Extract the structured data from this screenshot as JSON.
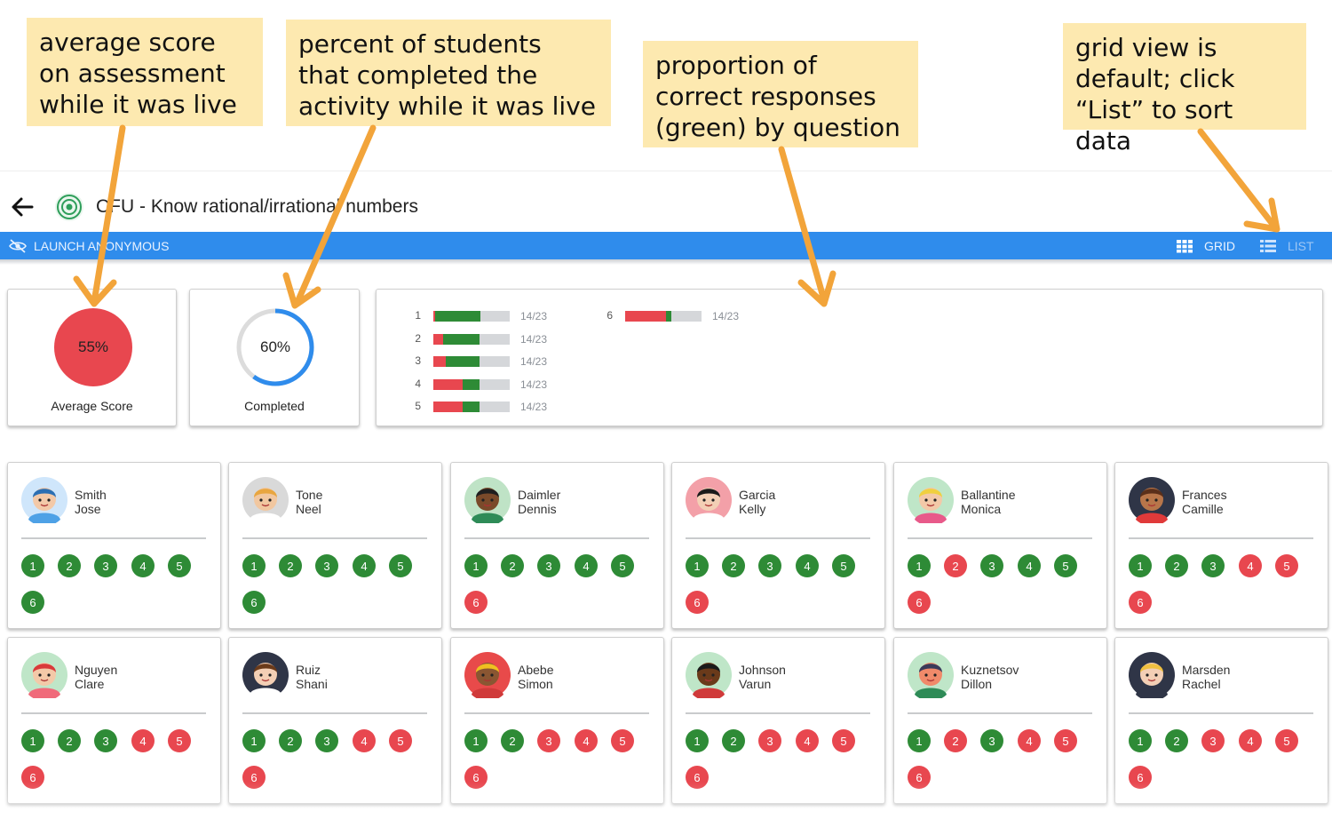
{
  "annotations": [
    "average score\non assessment\nwhile it was live",
    "percent of students\nthat completed the\nactivity while it was live",
    "proportion of\ncorrect responses\n(green) by question",
    "grid view is\ndefault; click\n“List” to sort data"
  ],
  "header": {
    "title": "CFU - Know rational/irrational numbers"
  },
  "toolbar": {
    "launch_label": "LAUNCH ANONYMOUS",
    "grid_label": "GRID",
    "list_label": "LIST"
  },
  "stats": {
    "average_score": "55%",
    "average_label": "Average Score",
    "completed": "60%",
    "completed_fraction": 0.6,
    "completed_label": "Completed"
  },
  "colors": {
    "accent": "#2f8cec",
    "correct": "#2e8b36",
    "incorrect": "#e8474f",
    "note": "#fde9b0"
  },
  "questions": [
    {
      "num": "1",
      "correct_fraction": 0.6,
      "incorrect_fraction": 0.02,
      "count": "14/23"
    },
    {
      "num": "2",
      "correct_fraction": 0.47,
      "incorrect_fraction": 0.13,
      "count": "14/23"
    },
    {
      "num": "3",
      "correct_fraction": 0.44,
      "incorrect_fraction": 0.16,
      "count": "14/23"
    },
    {
      "num": "4",
      "correct_fraction": 0.22,
      "incorrect_fraction": 0.38,
      "count": "14/23"
    },
    {
      "num": "5",
      "correct_fraction": 0.22,
      "incorrect_fraction": 0.38,
      "count": "14/23"
    },
    {
      "num": "6",
      "correct_fraction": 0.07,
      "incorrect_fraction": 0.53,
      "count": "14/23"
    }
  ],
  "students": [
    {
      "last": "Smith",
      "first": "Jose",
      "skin": "#f3c9a8",
      "hair": "#2b6fb3",
      "shirt": "#4ea1e6",
      "bg": "#cfe6fb",
      "answers": [
        "g",
        "g",
        "g",
        "g",
        "g",
        "g"
      ]
    },
    {
      "last": "Tone",
      "first": "Neel",
      "skin": "#f1c7a0",
      "hair": "#e8a640",
      "shirt": "#ffffff",
      "bg": "#d9d9d9",
      "answers": [
        "g",
        "g",
        "g",
        "g",
        "g",
        "g"
      ]
    },
    {
      "last": "Daimler",
      "first": "Dennis",
      "skin": "#7a4a2a",
      "hair": "#1f1f1f",
      "shirt": "#2e8b57",
      "bg": "#bfe3c6",
      "answers": [
        "g",
        "g",
        "g",
        "g",
        "g",
        "r"
      ]
    },
    {
      "last": "Garcia",
      "first": "Kelly",
      "skin": "#f3cfb5",
      "hair": "#1a1a1a",
      "shirt": "#ffffff",
      "bg": "#f3a0a8",
      "answers": [
        "g",
        "g",
        "g",
        "g",
        "g",
        "r"
      ]
    },
    {
      "last": "Ballantine",
      "first": "Monica",
      "skin": "#f3c9a8",
      "hair": "#f0d040",
      "shirt": "#e85a8a",
      "bg": "#bfe6c8",
      "answers": [
        "g",
        "r",
        "g",
        "g",
        "g",
        "r"
      ]
    },
    {
      "last": "Frances",
      "first": "Camille",
      "skin": "#b8764a",
      "hair": "#5a2f1a",
      "shirt": "#e03a3a",
      "bg": "#2f3547",
      "answers": [
        "g",
        "g",
        "g",
        "r",
        "r",
        "r"
      ]
    },
    {
      "last": "Nguyen",
      "first": "Clare",
      "skin": "#f3c9a8",
      "hair": "#d93a3a",
      "shirt": "#f06a7a",
      "bg": "#bfe6c8",
      "answers": [
        "g",
        "g",
        "g",
        "r",
        "r",
        "r"
      ]
    },
    {
      "last": "Ruiz",
      "first": "Shani",
      "skin": "#f3cfb5",
      "hair": "#6a3a1a",
      "shirt": "#ffffff",
      "bg": "#2f3547",
      "answers": [
        "g",
        "g",
        "g",
        "r",
        "r",
        "r"
      ]
    },
    {
      "last": "Abebe",
      "first": "Simon",
      "skin": "#8a5632",
      "hair": "#f0c020",
      "shirt": "#d03a3a",
      "bg": "#e84a4a",
      "answers": [
        "g",
        "g",
        "r",
        "r",
        "r",
        "r"
      ]
    },
    {
      "last": "Johnson",
      "first": "Varun",
      "skin": "#6a3a1a",
      "hair": "#1a1a1a",
      "shirt": "#d03a3a",
      "bg": "#bfe6c8",
      "answers": [
        "g",
        "g",
        "r",
        "r",
        "r",
        "r"
      ]
    },
    {
      "last": "Kuznetsov",
      "first": "Dillon",
      "skin": "#f08a6a",
      "hair": "#3a3a5a",
      "shirt": "#2e8b57",
      "bg": "#bfe6c8",
      "answers": [
        "g",
        "r",
        "g",
        "r",
        "r",
        "r"
      ]
    },
    {
      "last": "Marsden",
      "first": "Rachel",
      "skin": "#f3cfb5",
      "hair": "#f0c040",
      "shirt": "#2f3547",
      "bg": "#2f3547",
      "answers": [
        "g",
        "g",
        "r",
        "r",
        "r",
        "r"
      ]
    }
  ]
}
